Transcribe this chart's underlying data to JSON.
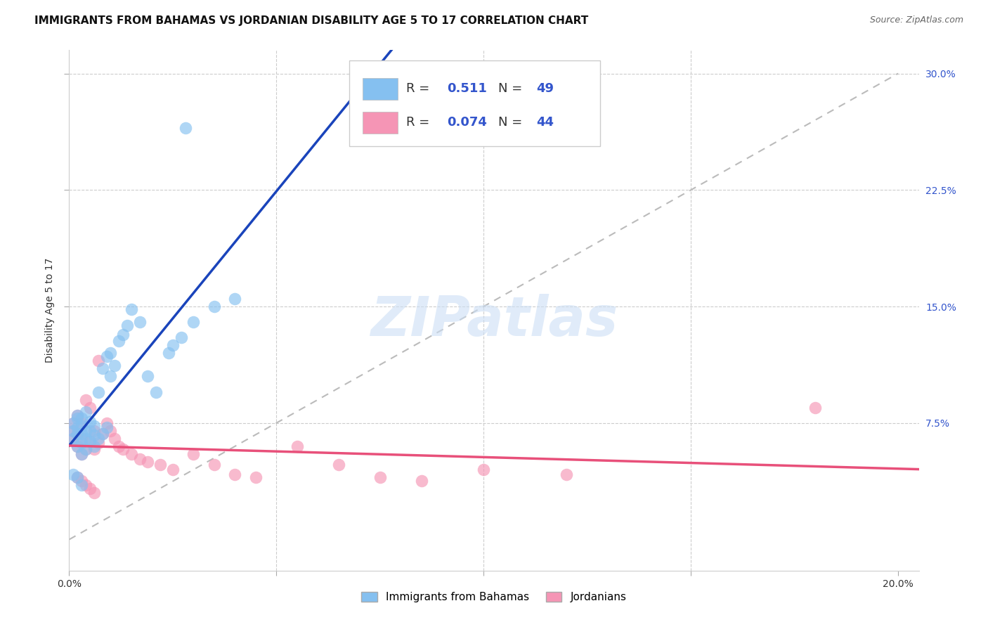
{
  "title": "IMMIGRANTS FROM BAHAMAS VS JORDANIAN DISABILITY AGE 5 TO 17 CORRELATION CHART",
  "source": "Source: ZipAtlas.com",
  "ylabel": "Disability Age 5 to 17",
  "xlim": [
    0.0,
    0.205
  ],
  "ylim": [
    -0.02,
    0.315
  ],
  "yticks": [
    0.075,
    0.15,
    0.225,
    0.3
  ],
  "ytick_labels": [
    "7.5%",
    "15.0%",
    "22.5%",
    "30.0%"
  ],
  "xticks": [
    0.0,
    0.05,
    0.1,
    0.15,
    0.2
  ],
  "xtick_labels": [
    "0.0%",
    "",
    "",
    "",
    "20.0%"
  ],
  "grid_color": "#cccccc",
  "background_color": "#ffffff",
  "blue_color": "#85c0f0",
  "pink_color": "#f595b5",
  "blue_line_color": "#1a44bb",
  "pink_line_color": "#e8507a",
  "dashed_line_color": "#bbbbbb",
  "accent_color": "#3355cc",
  "watermark": "ZIPatlas",
  "series1_label": "Immigrants from Bahamas",
  "series2_label": "Jordanians",
  "blue_x": [
    0.001,
    0.001,
    0.001,
    0.002,
    0.002,
    0.002,
    0.002,
    0.002,
    0.003,
    0.003,
    0.003,
    0.003,
    0.003,
    0.004,
    0.004,
    0.004,
    0.004,
    0.005,
    0.005,
    0.005,
    0.006,
    0.006,
    0.006,
    0.007,
    0.007,
    0.008,
    0.008,
    0.009,
    0.009,
    0.01,
    0.01,
    0.011,
    0.012,
    0.013,
    0.014,
    0.015,
    0.017,
    0.019,
    0.021,
    0.024,
    0.025,
    0.027,
    0.03,
    0.035,
    0.04,
    0.002,
    0.003,
    0.001,
    0.028
  ],
  "blue_y": [
    0.065,
    0.07,
    0.075,
    0.06,
    0.068,
    0.072,
    0.078,
    0.08,
    0.055,
    0.062,
    0.068,
    0.073,
    0.078,
    0.058,
    0.065,
    0.07,
    0.082,
    0.063,
    0.07,
    0.076,
    0.06,
    0.067,
    0.073,
    0.065,
    0.095,
    0.068,
    0.11,
    0.072,
    0.118,
    0.105,
    0.12,
    0.112,
    0.128,
    0.132,
    0.138,
    0.148,
    0.14,
    0.105,
    0.095,
    0.12,
    0.125,
    0.13,
    0.14,
    0.15,
    0.155,
    0.04,
    0.035,
    0.042,
    0.265
  ],
  "pink_x": [
    0.001,
    0.001,
    0.001,
    0.002,
    0.002,
    0.002,
    0.003,
    0.003,
    0.003,
    0.004,
    0.004,
    0.005,
    0.005,
    0.006,
    0.006,
    0.007,
    0.007,
    0.008,
    0.009,
    0.01,
    0.011,
    0.012,
    0.013,
    0.015,
    0.017,
    0.019,
    0.022,
    0.025,
    0.03,
    0.035,
    0.04,
    0.045,
    0.055,
    0.065,
    0.075,
    0.085,
    0.1,
    0.12,
    0.18,
    0.002,
    0.003,
    0.004,
    0.005,
    0.006
  ],
  "pink_y": [
    0.065,
    0.07,
    0.075,
    0.06,
    0.068,
    0.08,
    0.055,
    0.065,
    0.075,
    0.058,
    0.09,
    0.063,
    0.085,
    0.058,
    0.07,
    0.062,
    0.115,
    0.068,
    0.075,
    0.07,
    0.065,
    0.06,
    0.058,
    0.055,
    0.052,
    0.05,
    0.048,
    0.045,
    0.055,
    0.048,
    0.042,
    0.04,
    0.06,
    0.048,
    0.04,
    0.038,
    0.045,
    0.042,
    0.085,
    0.04,
    0.038,
    0.035,
    0.033,
    0.03
  ],
  "title_fontsize": 11,
  "tick_fontsize": 10,
  "watermark_fontsize": 56,
  "watermark_color": "#ccdff5",
  "watermark_alpha": 0.6
}
